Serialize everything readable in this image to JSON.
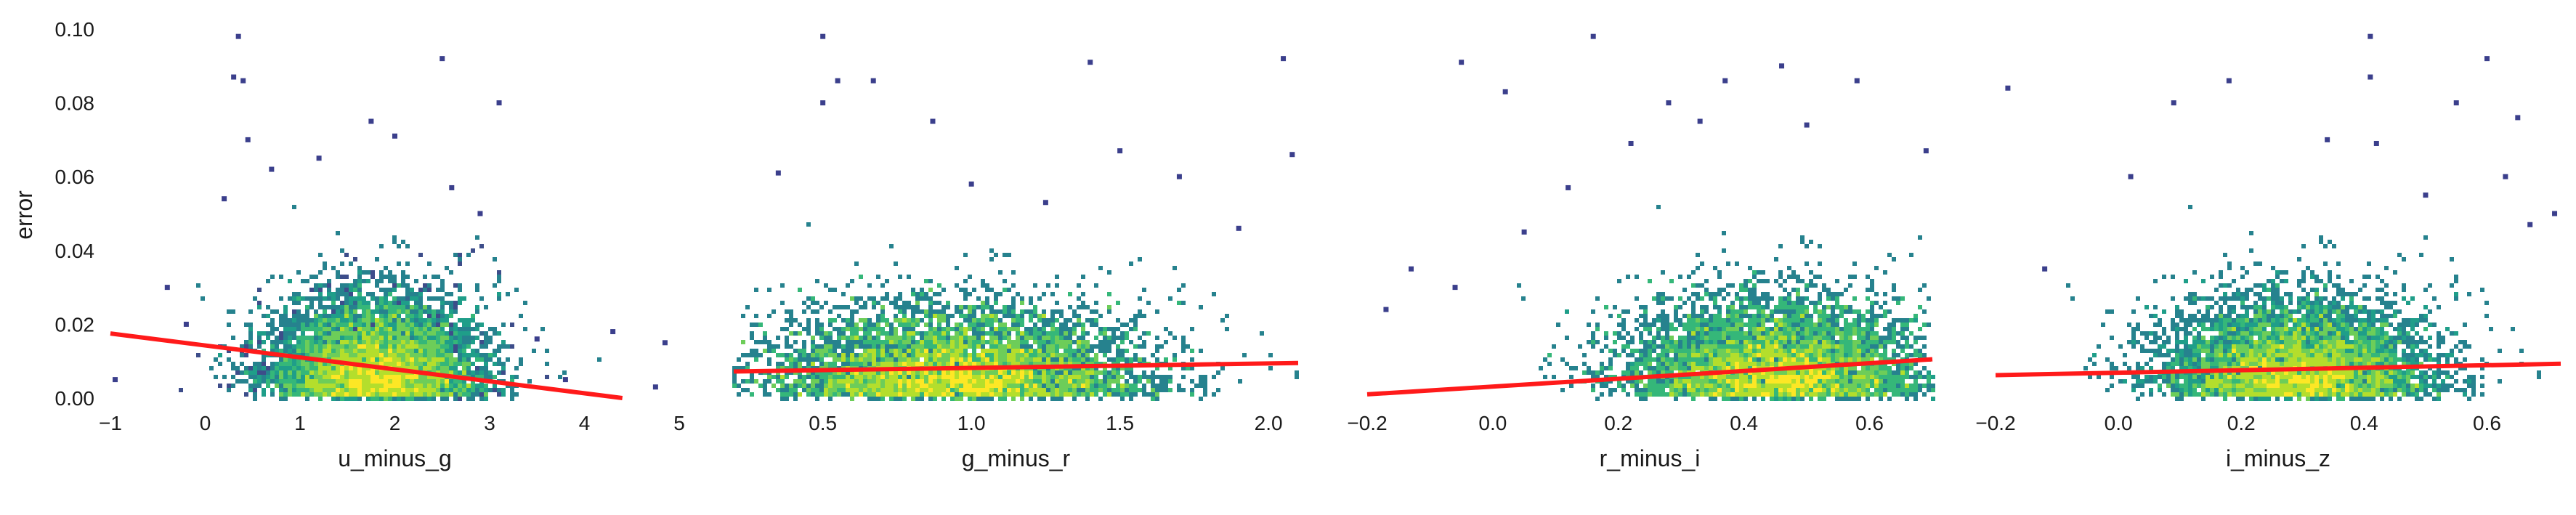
{
  "chart_data": [
    {
      "type": "scatter",
      "xlabel": "u_minus_g",
      "ylabel": "error",
      "xlim": [
        -1,
        5
      ],
      "ylim": [
        0,
        0.1
      ],
      "xticks": [
        "−1",
        "0",
        "1",
        "2",
        "3",
        "4",
        "5"
      ],
      "xtick_values": [
        -1,
        0,
        1,
        2,
        3,
        4,
        5
      ],
      "yticks": [
        "0.00",
        "0.02",
        "0.04",
        "0.06",
        "0.08",
        "0.10"
      ],
      "ytick_values": [
        0,
        0.02,
        0.04,
        0.06,
        0.08,
        0.1
      ],
      "density": {
        "center_x": 1.8,
        "spread_x": 0.55,
        "scale_y": 0.008
      },
      "regression_line": {
        "x": [
          -1,
          4.4
        ],
        "y": [
          0.0175,
          0.0
        ]
      },
      "outliers": [
        {
          "x": 0.35,
          "y": 0.098
        },
        {
          "x": 0.3,
          "y": 0.087
        },
        {
          "x": 0.4,
          "y": 0.086
        },
        {
          "x": 2.5,
          "y": 0.092
        },
        {
          "x": 3.1,
          "y": 0.08
        },
        {
          "x": 1.75,
          "y": 0.075
        },
        {
          "x": 0.45,
          "y": 0.07
        },
        {
          "x": 2.0,
          "y": 0.071
        },
        {
          "x": 1.2,
          "y": 0.065
        },
        {
          "x": 0.7,
          "y": 0.062
        },
        {
          "x": 2.9,
          "y": 0.05
        },
        {
          "x": 2.6,
          "y": 0.057
        },
        {
          "x": 0.2,
          "y": 0.054
        },
        {
          "x": -0.4,
          "y": 0.03
        },
        {
          "x": -0.2,
          "y": 0.02
        },
        {
          "x": -0.95,
          "y": 0.005
        },
        {
          "x": 3.5,
          "y": 0.016
        },
        {
          "x": 4.3,
          "y": 0.018
        },
        {
          "x": 4.85,
          "y": 0.015
        },
        {
          "x": 4.75,
          "y": 0.003
        },
        {
          "x": 3.8,
          "y": 0.005
        }
      ]
    },
    {
      "type": "scatter",
      "xlabel": "g_minus_r",
      "ylabel": "",
      "xlim": [
        0.2,
        2.1
      ],
      "ylim": [
        0,
        0.1
      ],
      "xticks": [
        "0.5",
        "1.0",
        "1.5",
        "2.0"
      ],
      "xtick_values": [
        0.5,
        1.0,
        1.5,
        2.0
      ],
      "yticks": [],
      "ytick_values": [],
      "density": {
        "center_x": 0.95,
        "spread_x": 0.32,
        "scale_y": 0.007
      },
      "regression_line": {
        "x": [
          0.2,
          2.1
        ],
        "y": [
          0.0072,
          0.0095
        ]
      },
      "outliers": [
        {
          "x": 0.5,
          "y": 0.098
        },
        {
          "x": 0.55,
          "y": 0.086
        },
        {
          "x": 0.67,
          "y": 0.086
        },
        {
          "x": 0.5,
          "y": 0.08
        },
        {
          "x": 2.05,
          "y": 0.092
        },
        {
          "x": 1.4,
          "y": 0.091
        },
        {
          "x": 2.08,
          "y": 0.066
        },
        {
          "x": 1.5,
          "y": 0.067
        },
        {
          "x": 0.35,
          "y": 0.061
        },
        {
          "x": 1.7,
          "y": 0.06
        },
        {
          "x": 1.0,
          "y": 0.058
        },
        {
          "x": 0.87,
          "y": 0.075
        },
        {
          "x": 1.25,
          "y": 0.053
        },
        {
          "x": 1.9,
          "y": 0.046
        }
      ]
    },
    {
      "type": "scatter",
      "xlabel": "r_minus_i",
      "ylabel": "",
      "xlim": [
        -0.2,
        0.7
      ],
      "ylim": [
        0,
        0.1
      ],
      "xticks": [
        "−0.2",
        "0.0",
        "0.2",
        "0.4",
        "0.6"
      ],
      "xtick_values": [
        -0.2,
        0.0,
        0.2,
        0.4,
        0.6
      ],
      "yticks": [],
      "ytick_values": [],
      "density": {
        "center_x": 0.45,
        "spread_x": 0.12,
        "scale_y": 0.008
      },
      "regression_line": {
        "x": [
          -0.2,
          0.7
        ],
        "y": [
          0.001,
          0.0105
        ]
      },
      "outliers": [
        {
          "x": 0.16,
          "y": 0.098
        },
        {
          "x": -0.05,
          "y": 0.091
        },
        {
          "x": 0.02,
          "y": 0.083
        },
        {
          "x": 0.37,
          "y": 0.086
        },
        {
          "x": 0.46,
          "y": 0.09
        },
        {
          "x": 0.58,
          "y": 0.086
        },
        {
          "x": 0.28,
          "y": 0.08
        },
        {
          "x": 0.33,
          "y": 0.075
        },
        {
          "x": 0.5,
          "y": 0.074
        },
        {
          "x": 0.22,
          "y": 0.069
        },
        {
          "x": 0.69,
          "y": 0.067
        },
        {
          "x": 0.12,
          "y": 0.057
        },
        {
          "x": -0.13,
          "y": 0.035
        },
        {
          "x": -0.17,
          "y": 0.024
        },
        {
          "x": 0.05,
          "y": 0.045
        },
        {
          "x": -0.06,
          "y": 0.03
        }
      ]
    },
    {
      "type": "scatter",
      "xlabel": "i_minus_z",
      "ylabel": "",
      "xlim": [
        -0.2,
        0.72
      ],
      "ylim": [
        0,
        0.1
      ],
      "xticks": [
        "−0.2",
        "0.0",
        "0.2",
        "0.4",
        "0.6"
      ],
      "xtick_values": [
        -0.2,
        0.0,
        0.2,
        0.4,
        0.6
      ],
      "yticks": [],
      "ytick_values": [],
      "density": {
        "center_x": 0.29,
        "spread_x": 0.11,
        "scale_y": 0.008
      },
      "regression_line": {
        "x": [
          -0.2,
          0.72
        ],
        "y": [
          0.0062,
          0.0093
        ]
      },
      "outliers": [
        {
          "x": 0.41,
          "y": 0.098
        },
        {
          "x": 0.6,
          "y": 0.092
        },
        {
          "x": 0.18,
          "y": 0.086
        },
        {
          "x": 0.41,
          "y": 0.087
        },
        {
          "x": -0.18,
          "y": 0.084
        },
        {
          "x": 0.55,
          "y": 0.08
        },
        {
          "x": 0.09,
          "y": 0.08
        },
        {
          "x": 0.34,
          "y": 0.07
        },
        {
          "x": 0.42,
          "y": 0.069
        },
        {
          "x": 0.65,
          "y": 0.076
        },
        {
          "x": 0.02,
          "y": 0.06
        },
        {
          "x": 0.63,
          "y": 0.06
        },
        {
          "x": 0.71,
          "y": 0.05
        },
        {
          "x": 0.67,
          "y": 0.047
        },
        {
          "x": -0.12,
          "y": 0.035
        },
        {
          "x": 0.5,
          "y": 0.055
        }
      ]
    }
  ],
  "colors": {
    "regression": "#ff1a1a",
    "colormap": [
      "#3b3f8c",
      "#3d4d8a",
      "#31688e",
      "#26828e",
      "#1f9e89",
      "#35b779",
      "#6dcd59",
      "#b4de2c",
      "#fde725"
    ]
  }
}
